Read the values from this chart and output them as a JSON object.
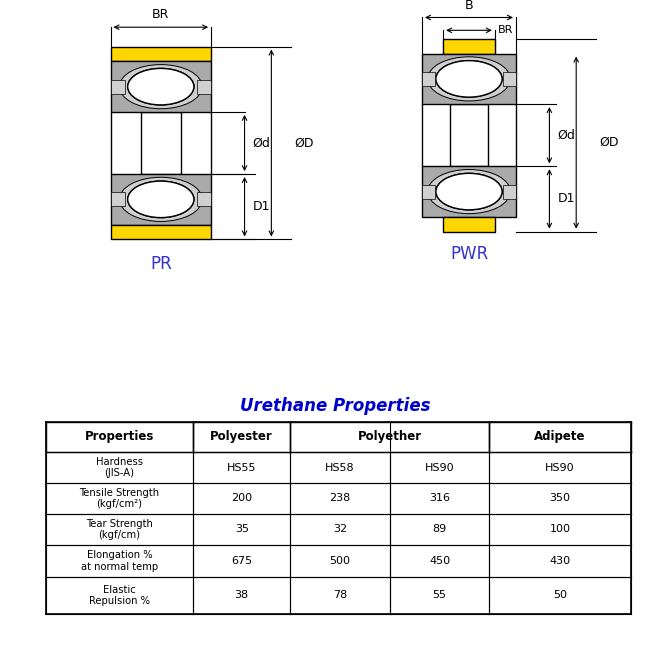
{
  "title_color": "#0000CC",
  "diagram_label_color": "#3333CC",
  "line_color": "#000000",
  "bg_color": "#ffffff",
  "yellow_color": "#FFD700",
  "gray_color": "#AAAAAA",
  "light_gray": "#D0D0D0",
  "dark_gray": "#888888",
  "white": "#FFFFFF",
  "pr_label": "PR",
  "pwr_label": "PWR",
  "table_title": "Urethane Properties",
  "table_headers": [
    "Properties",
    "Polyester",
    "Polyether",
    "Adipete"
  ],
  "table_rows": [
    [
      "Hardness\n(JIS-A)",
      "HS55",
      "HS58",
      "HS90",
      "HS90"
    ],
    [
      "Tensile Strength\n(kgf/cm²)",
      "200",
      "238",
      "316",
      "350"
    ],
    [
      "Tear Strength\n(kgf/cm)",
      "35",
      "32",
      "89",
      "100"
    ],
    [
      "Elongation %\nat normal temp",
      "675",
      "500",
      "450",
      "430"
    ],
    [
      "Elastic\nRepulsion %",
      "38",
      "78",
      "55",
      "50"
    ]
  ]
}
